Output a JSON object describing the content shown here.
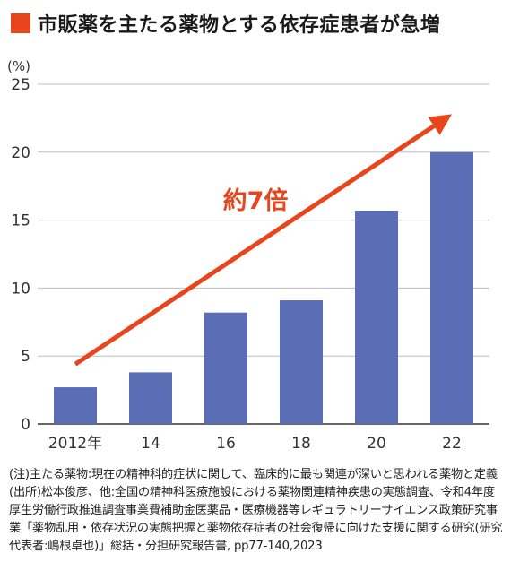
{
  "title": "市販薬を主たる薬物とする依存症患者が急増",
  "colors": {
    "accent": "#e8451c",
    "bar": "#5a6db5",
    "grid": "#bdbdbd",
    "axis": "#333333"
  },
  "chart_data": {
    "type": "bar",
    "unit_label": "(%)",
    "categories": [
      "2012年",
      "14",
      "16",
      "18",
      "20",
      "22"
    ],
    "values": [
      2.7,
      3.8,
      8.2,
      9.1,
      15.7,
      20.0
    ],
    "ylim": [
      0,
      25
    ],
    "yticks": [
      0,
      5,
      10,
      15,
      20,
      25
    ],
    "grid": true,
    "annotation": {
      "text": "約7倍",
      "arrow_from": [
        "2012年",
        4.4
      ],
      "arrow_to": [
        "22",
        22.8
      ]
    }
  },
  "note": {
    "text": "(注)主たる薬物:現在の精神科的症状に関して、臨床的に最も関連が深いと思われる薬物と定義　(出所)松本俊彦、他:全国の精神科医療施設における薬物関連精神疾患の実態調査、令和4年度厚生労働行政推進調査事業費補助金医薬品・医療機器等レギュラトリーサイエンス政策研究事業「薬物乱用・依存状況の実態把握と薬物依存症者の社会復帰に向けた支援に関する研究(研究代表者:嶋根卓也)」総括・分担研究報告書, pp77-140,2023"
  }
}
